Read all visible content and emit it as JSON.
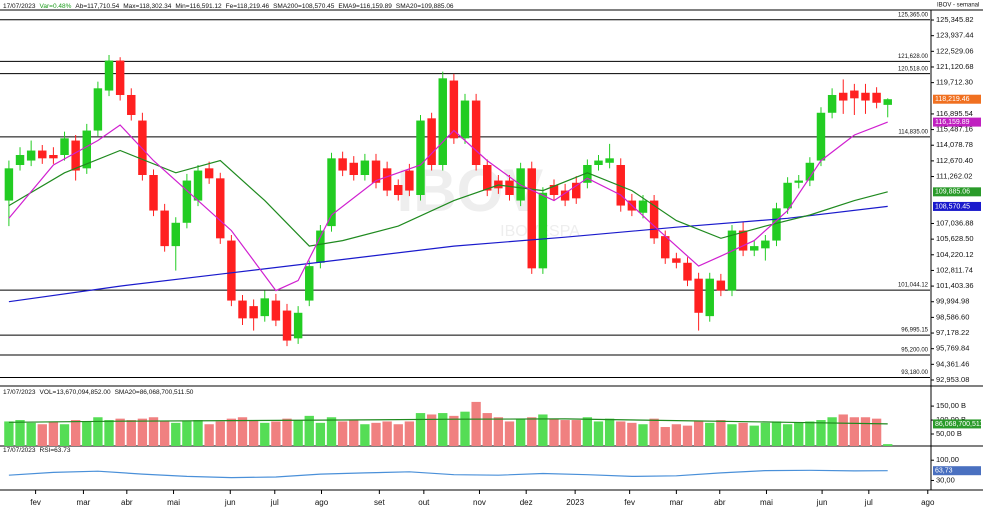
{
  "chart_data": [
    {
      "type": "candlestick",
      "title": "IBOV - semanal",
      "header": [
        "17/07/2023",
        "Var=0.48%",
        "Ab=117,710.54",
        "Max=118,302.34",
        "Min=116,591.12",
        "Fe=118,219.46",
        "SMA200=108,570.45",
        "EMA9=116,159.89",
        "SMA20=109,885.06"
      ],
      "watermark": "IBOV",
      "watermark_sub": "IBOVESPA",
      "up_color": "#22cc22",
      "down_color": "#ff2020",
      "open": [
        109100,
        112300,
        112700,
        113600,
        113200,
        113200,
        114500,
        112000,
        115400,
        119000,
        121700,
        118600,
        116300,
        111400,
        108200,
        105000,
        107100,
        109100,
        112000,
        111100,
        105500,
        100100,
        99600,
        98700,
        100100,
        99200,
        96700,
        100100,
        103500,
        106800,
        112900,
        112500,
        111400,
        112700,
        112000,
        110500,
        111800,
        109600,
        116500,
        112300,
        119900,
        114700,
        118100,
        112300,
        110900,
        110900,
        109100,
        112000,
        103000,
        110500,
        110000,
        110700,
        110700,
        112300,
        112500,
        112300,
        109100,
        108000,
        109100,
        105900,
        103900,
        103500,
        102070,
        98700,
        101900,
        101000,
        106400,
        104600,
        104800,
        105500,
        108400,
        110700,
        110900,
        112700,
        117000,
        118800,
        119000,
        118800,
        118800,
        117710.54
      ],
      "high": [
        112700,
        113900,
        114500,
        114100,
        113900,
        115300,
        115000,
        116000,
        119800,
        122200,
        122000,
        119200,
        117000,
        111900,
        108800,
        107600,
        111500,
        112300,
        112600,
        111600,
        106000,
        100600,
        100200,
        101000,
        100700,
        99800,
        99600,
        103700,
        106900,
        113400,
        113500,
        113100,
        113300,
        113300,
        112600,
        111000,
        112400,
        116800,
        117000,
        120700,
        120500,
        118700,
        118700,
        112800,
        111400,
        111400,
        112500,
        112600,
        110300,
        111000,
        110600,
        111300,
        112800,
        113200,
        114200,
        112900,
        109700,
        109600,
        109600,
        106400,
        104400,
        104000,
        102600,
        102600,
        102500,
        106900,
        107200,
        105500,
        106000,
        108900,
        111200,
        111400,
        113000,
        117500,
        119200,
        120000,
        119600,
        119600,
        119300,
        118302.34
      ],
      "low": [
        106800,
        111800,
        112200,
        112400,
        112400,
        112700,
        110900,
        111500,
        114900,
        118500,
        118100,
        116300,
        110900,
        107700,
        104500,
        102800,
        106600,
        108600,
        110600,
        105200,
        99600,
        97900,
        97400,
        98200,
        97800,
        96000,
        96200,
        99600,
        103000,
        106300,
        111300,
        110900,
        110900,
        110200,
        109500,
        109100,
        109500,
        109100,
        111800,
        111800,
        114200,
        114200,
        111800,
        109500,
        109700,
        109100,
        108600,
        102500,
        102500,
        109100,
        108600,
        108800,
        110200,
        111800,
        112000,
        108100,
        107700,
        107500,
        105200,
        103400,
        103000,
        101400,
        97400,
        98200,
        100500,
        100500,
        104100,
        104100,
        103700,
        105000,
        107900,
        110200,
        110400,
        112200,
        116500,
        116900,
        116800,
        116900,
        117400,
        116591.12
      ],
      "close": [
        112000,
        113200,
        113600,
        112900,
        112900,
        114700,
        111800,
        115400,
        119200,
        121700,
        118600,
        116800,
        111400,
        108200,
        105000,
        107100,
        110900,
        111800,
        111100,
        105700,
        100100,
        98500,
        98500,
        100300,
        98300,
        96500,
        99000,
        103200,
        106400,
        112900,
        111800,
        111400,
        112700,
        110700,
        110000,
        109600,
        110000,
        116300,
        112300,
        120100,
        114700,
        118100,
        112300,
        110000,
        110200,
        109600,
        112000,
        103000,
        109800,
        109600,
        109100,
        109300,
        112300,
        112700,
        112900,
        108650,
        108200,
        109100,
        105700,
        103900,
        103500,
        101900,
        99000,
        102070,
        101000,
        106400,
        104600,
        105000,
        105500,
        108400,
        110700,
        110900,
        112500,
        117000,
        118600,
        118100,
        118300,
        118100,
        117900,
        118219.46
      ],
      "series": [
        {
          "color": "#1a1acc",
          "x": [
            0,
            10,
            20,
            30,
            40,
            50,
            60,
            70,
            79
          ],
          "values": [
            100000,
            101400,
            102600,
            103800,
            105000,
            105800,
            106700,
            107500,
            108570.45
          ]
        },
        {
          "color": "#1f8a1f",
          "x": [
            0,
            5,
            10,
            15,
            19,
            23,
            27,
            30,
            35,
            40,
            44,
            48,
            52,
            56,
            60,
            64,
            68,
            72,
            76,
            79
          ],
          "values": [
            108650,
            111600,
            113600,
            111600,
            112700,
            109100,
            105000,
            105500,
            106800,
            109100,
            110500,
            110000,
            111600,
            110000,
            107300,
            105700,
            106800,
            107800,
            109100,
            109885.06
          ]
        },
        {
          "color": "#d020d0",
          "x": [
            0,
            4,
            8,
            10,
            13,
            17,
            20,
            24,
            26,
            29,
            33,
            37,
            40,
            43,
            46,
            49,
            52,
            55,
            58,
            62,
            64,
            67,
            70,
            73,
            76,
            79
          ],
          "values": [
            107500,
            112300,
            114500,
            115900,
            112700,
            109100,
            106400,
            101000,
            101900,
            107800,
            110900,
            112300,
            115400,
            112700,
            110500,
            109100,
            111100,
            109600,
            106800,
            103200,
            104100,
            105500,
            108200,
            112700,
            115000,
            116159.89
          ]
        }
      ],
      "levels": [
        {
          "value": 125365,
          "label": "125,365.00"
        },
        {
          "value": 121628,
          "label": "121,628.00"
        },
        {
          "value": 120518,
          "label": "120,518.00"
        },
        {
          "value": 114835,
          "label": "114,835.00"
        },
        {
          "value": 101044.12,
          "label": "101,044.12"
        },
        {
          "value": 96995.15,
          "label": "96,995.15"
        },
        {
          "value": 95200,
          "label": "95,200.00"
        },
        {
          "value": 93180,
          "label": "93,180.00"
        }
      ],
      "value_boxes": [
        {
          "value": 118219.46,
          "label": "118,219.46",
          "color": "#f07020"
        },
        {
          "value": 116159.89,
          "label": "116,159.89",
          "color": "#c020c0"
        },
        {
          "value": 109885.06,
          "label": "109,885.06",
          "color": "#2a9a2a"
        },
        {
          "value": 108570.45,
          "label": "108,570.45",
          "color": "#1a1acc"
        }
      ],
      "ylim": [
        92412,
        126248
      ],
      "yticks": [
        {
          "value": 125345.82,
          "label": "125,345.82"
        },
        {
          "value": 123937.44,
          "label": "123,937.44"
        },
        {
          "value": 122529.06,
          "label": "122,529.06"
        },
        {
          "value": 121120.68,
          "label": "121,120.68"
        },
        {
          "value": 119712.3,
          "label": "119,712.30"
        },
        {
          "value": 116895.54,
          "label": "116,895.54"
        },
        {
          "value": 115487.16,
          "label": "115,487.16"
        },
        {
          "value": 114078.78,
          "label": "114,078.78"
        },
        {
          "value": 112670.4,
          "label": "112,670.40"
        },
        {
          "value": 111262.02,
          "label": "111,262.02"
        },
        {
          "value": 107036.88,
          "label": "107,036.88"
        },
        {
          "value": 105628.5,
          "label": "105,628.50"
        },
        {
          "value": 104220.12,
          "label": "104,220.12"
        },
        {
          "value": 102811.74,
          "label": "102,811.74"
        },
        {
          "value": 101403.36,
          "label": "101,403.36"
        },
        {
          "value": 99994.98,
          "label": "99,994.98"
        },
        {
          "value": 98586.6,
          "label": "98,586.60"
        },
        {
          "value": 97178.22,
          "label": "97,178.22"
        },
        {
          "value": 95769.84,
          "label": "95,769.84"
        },
        {
          "value": 94361.46,
          "label": "94,361.46"
        },
        {
          "value": 92953.08,
          "label": "92,953.08"
        }
      ],
      "xlim": [
        -0.8,
        82.8
      ],
      "xticks": [
        {
          "value": 2.4,
          "label": "fev"
        },
        {
          "value": 6.7,
          "label": "mar"
        },
        {
          "value": 10.6,
          "label": "abr"
        },
        {
          "value": 14.8,
          "label": "mai"
        },
        {
          "value": 19.9,
          "label": "jun"
        },
        {
          "value": 23.9,
          "label": "jul"
        },
        {
          "value": 28.1,
          "label": "ago"
        },
        {
          "value": 33.3,
          "label": "set"
        },
        {
          "value": 37.3,
          "label": "out"
        },
        {
          "value": 42.3,
          "label": "nov"
        },
        {
          "value": 46.5,
          "label": "dez"
        },
        {
          "value": 50.9,
          "label": "2023"
        },
        {
          "value": 55.8,
          "label": "fev"
        },
        {
          "value": 60,
          "label": "mar"
        },
        {
          "value": 63.9,
          "label": "abr"
        },
        {
          "value": 68.1,
          "label": "mai"
        },
        {
          "value": 73.1,
          "label": "jun"
        },
        {
          "value": 77.3,
          "label": "jul"
        },
        {
          "value": 82.6,
          "label": "ago"
        }
      ]
    },
    {
      "type": "bar",
      "header": [
        "17/07/2023",
        "VOL=13,670,094,852.00",
        "SMA20=86,068,700,511.50"
      ],
      "up_color": "#55dd55",
      "down_color": "#f08080",
      "values": [
        95,
        100,
        90,
        85,
        95,
        85,
        100,
        95,
        110,
        100,
        105,
        100,
        105,
        110,
        95,
        90,
        95,
        100,
        85,
        95,
        105,
        110,
        100,
        90,
        95,
        105,
        100,
        115,
        90,
        110,
        95,
        100,
        85,
        90,
        95,
        85,
        95,
        125,
        120,
        125,
        115,
        130,
        165,
        125,
        110,
        95,
        105,
        110,
        120,
        105,
        100,
        100,
        110,
        95,
        105,
        95,
        90,
        85,
        105,
        75,
        85,
        80,
        95,
        90,
        100,
        85,
        90,
        80,
        90,
        95,
        85,
        90,
        95,
        100,
        110,
        120,
        110,
        110,
        105,
        13.67
      ],
      "series": [
        {
          "color": "#1f8a1f",
          "x": [
            0,
            10,
            20,
            30,
            40,
            50,
            60,
            70,
            79
          ],
          "values": [
            92,
            96,
            98,
            100,
            103,
            104,
            98,
            92,
            86.0687005115
          ]
        }
      ],
      "value_boxes": [
        {
          "value": 86.0687005115,
          "label": "86,068,700,511.5",
          "color": "#2a9a2a"
        }
      ],
      "ylim": [
        7,
        179
      ],
      "yticks": [
        {
          "value": 150,
          "label": "150,00 B"
        },
        {
          "value": 100,
          "label": "100,00 B"
        },
        {
          "value": 50,
          "label": "50,00 B"
        }
      ]
    },
    {
      "type": "line",
      "header": [
        "17/07/2023",
        "RSI=63.73"
      ],
      "series": [
        {
          "color": "#4a90d9",
          "x": [
            0,
            4,
            8,
            12,
            16,
            20,
            24,
            28,
            32,
            36,
            40,
            44,
            48,
            52,
            56,
            60,
            64,
            68,
            72,
            76,
            79
          ],
          "values": [
            48,
            58,
            62,
            52,
            44,
            40,
            42,
            52,
            56,
            60,
            50,
            48,
            54,
            50,
            44,
            46,
            56,
            64,
            65,
            63,
            63.73
          ]
        }
      ],
      "value_boxes": [
        {
          "value": 63.73,
          "label": "63,73",
          "color": "#4a70c0"
        }
      ],
      "ylim": [
        -3,
        118
      ],
      "yticks": [
        {
          "value": 100,
          "label": "100,00"
        },
        {
          "value": 30,
          "label": "30,00"
        }
      ]
    }
  ]
}
